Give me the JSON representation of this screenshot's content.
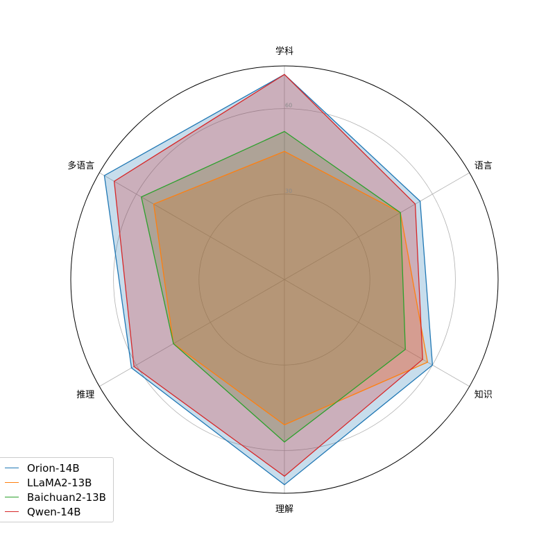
{
  "chart_data": {
    "type": "radar",
    "categories": [
      "学科",
      "语言",
      "知识",
      "理解",
      "推理",
      "多语言"
    ],
    "rlim": [
      0,
      75
    ],
    "rticks": [
      30,
      60
    ],
    "rtick_labels": [
      "30",
      "60"
    ],
    "grid": true,
    "legend_position": "lower-left",
    "series": [
      {
        "name": "Orion-14B",
        "color": "#1f77b4",
        "values": [
          72,
          55,
          60,
          72,
          62,
          73
        ]
      },
      {
        "name": "LLaMA2-13B",
        "color": "#ff7f0e",
        "values": [
          45,
          47,
          58,
          51,
          45,
          53
        ]
      },
      {
        "name": "Baichuan2-13B",
        "color": "#2ca02c",
        "values": [
          52,
          47,
          49,
          57,
          45,
          58
        ]
      },
      {
        "name": "Qwen-14B",
        "color": "#d62728",
        "values": [
          72,
          53,
          56,
          69,
          61,
          69
        ]
      }
    ]
  }
}
